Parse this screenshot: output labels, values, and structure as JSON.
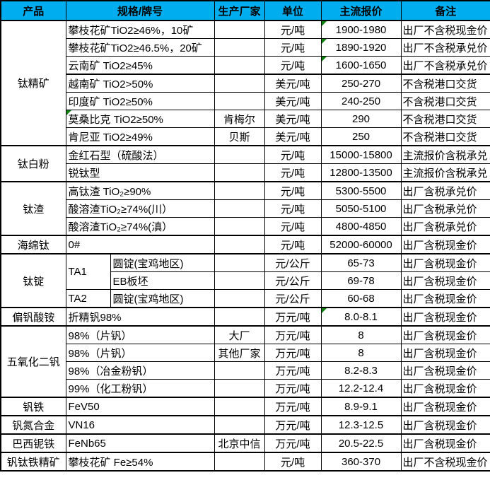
{
  "colors": {
    "header_bg": "#00AEEF",
    "header_text": "#000000",
    "border": "#000000",
    "cell_bg": "#FFFFFF",
    "flag_green": "#108310"
  },
  "table": {
    "columns": [
      {
        "id": "product",
        "label": "产品"
      },
      {
        "id": "spec",
        "label": "规格/牌号"
      },
      {
        "id": "maker",
        "label": "生产厂家"
      },
      {
        "id": "unit",
        "label": "单位"
      },
      {
        "id": "price",
        "label": "主流报价"
      },
      {
        "id": "note",
        "label": "备注"
      }
    ],
    "groups": [
      {
        "product": "钛精矿",
        "rows": [
          {
            "spec": "攀枝花矿TiO2≥46%，10矿",
            "unit": "元/吨",
            "price": "1900-1980",
            "note": "出厂不含税现金价",
            "price_flag": true
          },
          {
            "spec": "攀枝花矿TiO2≥46.5%，20矿",
            "unit": "元/吨",
            "price": "1890-1920",
            "note": "出厂不含税承兑价",
            "price_flag": true
          },
          {
            "spec": "云南矿 TiO2≥45%",
            "unit": "元/吨",
            "price": "1600-1650",
            "note": "出厂不含税承兑价",
            "price_flag": true
          },
          {
            "spec": "越南矿 TiO2>50%",
            "unit": "美元/吨",
            "price": "250-270",
            "note": "不含税港口交货",
            "thick_top": true
          },
          {
            "spec": "印度矿 TiO2≥50%",
            "unit": "美元/吨",
            "price": "240-250",
            "note": "不含税港口交货"
          },
          {
            "spec": "莫桑比克 TiO2≥50%",
            "maker": "肯梅尔",
            "unit": "美元/吨",
            "price": "290",
            "note": "不含税港口交货",
            "spec_flag": true
          },
          {
            "spec": "肯尼亚 TiO2≥49%",
            "maker": "贝斯",
            "unit": "美元/吨",
            "price": "250",
            "note": "不含税港口交货"
          }
        ]
      },
      {
        "product": "钛白粉",
        "rows": [
          {
            "spec": "金红石型（硫酸法）",
            "unit": "元/吨",
            "price": "15000-15800",
            "note": "主流报价含税承兑"
          },
          {
            "spec": "锐钛型",
            "unit": "元/吨",
            "price": "12800-13500",
            "note": "主流报价含税承兑"
          }
        ]
      },
      {
        "product": "钛渣",
        "rows": [
          {
            "spec": "高钛渣 TiO₂≥90%",
            "unit": "元/吨",
            "price": "5300-5500",
            "note": "出厂含税承兑价"
          },
          {
            "spec": "酸溶渣TiO₂≥74%(川）",
            "unit": "元/吨",
            "price": "5050-5100",
            "note": "出厂含税承兑价"
          },
          {
            "spec": "酸溶渣TiO₂≥74%(滇）",
            "unit": "元/吨",
            "price": "4800-4850",
            "note": "出厂含税承兑价"
          }
        ]
      },
      {
        "product": "海绵钛",
        "rows": [
          {
            "spec": "0#",
            "unit": "元/吨",
            "price": "52000-60000",
            "note": "出厂含税现金价"
          }
        ]
      },
      {
        "product": "钛锭",
        "split": true,
        "rows": [
          {
            "specA": "TA1",
            "specA_rowspan": 2,
            "specB": "圆锭(宝鸡地区)",
            "unit": "元/公斤",
            "price": "65-73",
            "note": "出厂含税现金价"
          },
          {
            "specB": "EB板坯",
            "unit": "元/公斤",
            "price": "69-78",
            "note": "出厂含税现金价"
          },
          {
            "specA": "TA2",
            "specB": "圆锭(宝鸡地区)",
            "unit": "元/公斤",
            "price": "60-68",
            "note": "出厂含税现金价"
          }
        ]
      },
      {
        "product": "偏钒酸铵",
        "rows": [
          {
            "spec": "折精钒98%",
            "unit": "万元/吨",
            "price": "8.0-8.1",
            "note": "出厂含税现金价",
            "price_flag": true
          }
        ]
      },
      {
        "product": "五氧化二钒",
        "rows": [
          {
            "spec": "98%（片钒）",
            "maker": "大厂",
            "unit": "万元/吨",
            "price": "8",
            "note": "出厂含税现金价"
          },
          {
            "spec": "98%（片钒）",
            "maker": "其他厂家",
            "unit": "万元/吨",
            "price": "8",
            "note": "出厂含税现金价"
          },
          {
            "spec": "98%（冶金粉钒）",
            "unit": "万元/吨",
            "price": "8.2-8.3",
            "note": "出厂含税现金价"
          },
          {
            "spec": "99%（化工粉钒）",
            "unit": "万元/吨",
            "price": "12.2-12.4",
            "note": "出厂含税现金价"
          }
        ]
      },
      {
        "product": "钒铁",
        "rows": [
          {
            "spec": "FeV50",
            "unit": "万元/吨",
            "price": "8.9-9.1",
            "note": "出厂含税现金价"
          }
        ]
      },
      {
        "product": "钒氮合金",
        "rows": [
          {
            "spec": "VN16",
            "unit": "万元/吨",
            "price": "12.3-12.5",
            "note": "出厂含税现金价"
          }
        ]
      },
      {
        "product": "巴西铌铁",
        "rows": [
          {
            "spec": "FeNb65",
            "maker": "北京中信",
            "unit": "万元/吨",
            "price": "20.5-22.5",
            "note": "出厂含税现金价"
          }
        ]
      },
      {
        "product": "钒钛铁精矿",
        "rows": [
          {
            "spec": "攀枝花矿 Fe≥54%",
            "unit": "元/吨",
            "price": "360-370",
            "note": "出厂不含税现金价"
          }
        ]
      }
    ]
  }
}
